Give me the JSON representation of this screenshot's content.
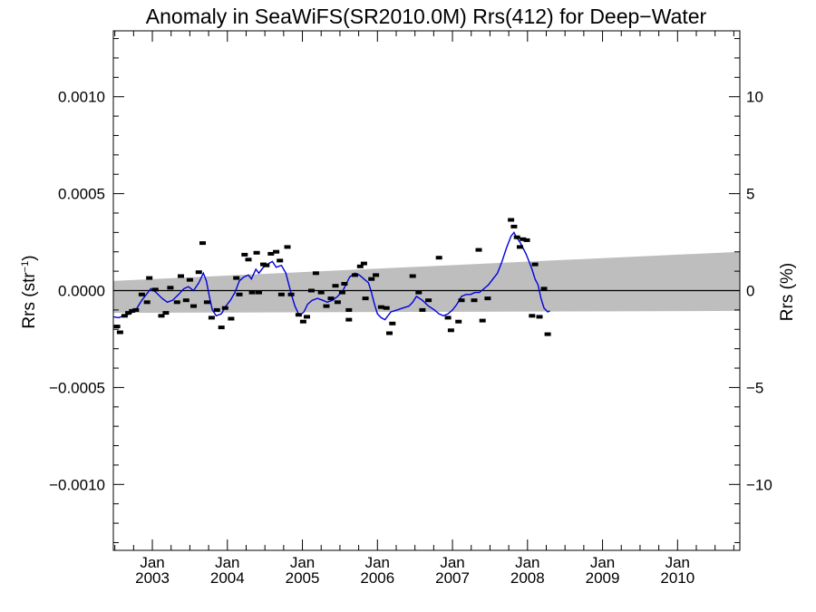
{
  "chart_data": {
    "type": "scatter",
    "title": "Anomaly in SeaWiFS(SR2010.0M) Rrs(412) for Deep−Water",
    "ylabel_left_main": "Rrs (str",
    "ylabel_left_sup": "−1",
    "ylabel_left_close": ")",
    "ylabel_right": "Rrs (%)",
    "x_tick_month": "Jan",
    "x_ticks": [
      {
        "year": 2003,
        "label": "2003"
      },
      {
        "year": 2004,
        "label": "2004"
      },
      {
        "year": 2005,
        "label": "2005"
      },
      {
        "year": 2006,
        "label": "2006"
      },
      {
        "year": 2007,
        "label": "2007"
      },
      {
        "year": 2008,
        "label": "2008"
      },
      {
        "year": 2009,
        "label": "2009"
      },
      {
        "year": 2010,
        "label": "2010"
      }
    ],
    "xlim": [
      2002.48,
      2010.83
    ],
    "ylim": [
      -0.00134,
      0.00134
    ],
    "y_ticks_left": [
      {
        "value": 0.001,
        "label": "0.0010"
      },
      {
        "value": 0.0005,
        "label": "0.0005"
      },
      {
        "value": 0.0,
        "label": "0.0000"
      },
      {
        "value": -0.0005,
        "label": "−0.0005"
      },
      {
        "value": -0.001,
        "label": "−0.0010"
      }
    ],
    "y_ticks_right": [
      {
        "value": 0.001,
        "label": "10"
      },
      {
        "value": 0.0005,
        "label": "5"
      },
      {
        "value": 0.0,
        "label": "0"
      },
      {
        "value": -0.0005,
        "label": "−5"
      },
      {
        "value": -0.001,
        "label": "−10"
      }
    ],
    "zero_line": true,
    "band": {
      "color": "#bebebe",
      "upper_start": 5e-05,
      "upper_end": 0.0002,
      "lower_start": -0.000115,
      "lower_end": -0.000105
    },
    "markers": [
      {
        "x": 2002.53,
        "y": -0.000185
      },
      {
        "x": 2002.57,
        "y": -0.000215
      },
      {
        "x": 2002.63,
        "y": -0.00013
      },
      {
        "x": 2002.68,
        "y": -0.000115
      },
      {
        "x": 2002.73,
        "y": -0.000105
      },
      {
        "x": 2002.78,
        "y": -0.0001
      },
      {
        "x": 2002.86,
        "y": -2e-05
      },
      {
        "x": 2002.93,
        "y": -6e-05
      },
      {
        "x": 2002.96,
        "y": 6.5e-05
      },
      {
        "x": 2003.04,
        "y": 5e-06
      },
      {
        "x": 2003.12,
        "y": -0.00013
      },
      {
        "x": 2003.18,
        "y": -0.000115
      },
      {
        "x": 2003.24,
        "y": 1.5e-05
      },
      {
        "x": 2003.33,
        "y": -6e-05
      },
      {
        "x": 2003.38,
        "y": 7.5e-05
      },
      {
        "x": 2003.45,
        "y": -5e-05
      },
      {
        "x": 2003.5,
        "y": 5.5e-05
      },
      {
        "x": 2003.55,
        "y": -8e-05
      },
      {
        "x": 2003.62,
        "y": 9.5e-05
      },
      {
        "x": 2003.67,
        "y": 0.000245
      },
      {
        "x": 2003.73,
        "y": -6e-05
      },
      {
        "x": 2003.79,
        "y": -0.00014
      },
      {
        "x": 2003.86,
        "y": -0.0001
      },
      {
        "x": 2003.92,
        "y": -0.00019
      },
      {
        "x": 2003.97,
        "y": -9e-05
      },
      {
        "x": 2004.05,
        "y": -0.000145
      },
      {
        "x": 2004.12,
        "y": 6.5e-05
      },
      {
        "x": 2004.16,
        "y": -2e-05
      },
      {
        "x": 2004.23,
        "y": 0.000185
      },
      {
        "x": 2004.28,
        "y": 0.00016
      },
      {
        "x": 2004.33,
        "y": -1e-05
      },
      {
        "x": 2004.39,
        "y": 0.000195
      },
      {
        "x": 2004.42,
        "y": -1e-05
      },
      {
        "x": 2004.48,
        "y": 0.000135
      },
      {
        "x": 2004.52,
        "y": 0.00013
      },
      {
        "x": 2004.58,
        "y": 0.00019
      },
      {
        "x": 2004.65,
        "y": 0.0002
      },
      {
        "x": 2004.7,
        "y": 0.000155
      },
      {
        "x": 2004.72,
        "y": -2e-05
      },
      {
        "x": 2004.8,
        "y": 0.000225
      },
      {
        "x": 2004.85,
        "y": -2e-05
      },
      {
        "x": 2004.95,
        "y": -0.000125
      },
      {
        "x": 2005.01,
        "y": -0.00016
      },
      {
        "x": 2005.06,
        "y": -0.000135
      },
      {
        "x": 2005.12,
        "y": 0.0
      },
      {
        "x": 2005.18,
        "y": 9e-05
      },
      {
        "x": 2005.25,
        "y": -1e-05
      },
      {
        "x": 2005.32,
        "y": -8e-05
      },
      {
        "x": 2005.38,
        "y": -4e-05
      },
      {
        "x": 2005.44,
        "y": 2.5e-05
      },
      {
        "x": 2005.47,
        "y": -6e-05
      },
      {
        "x": 2005.53,
        "y": -1e-05
      },
      {
        "x": 2005.56,
        "y": 3.5e-05
      },
      {
        "x": 2005.62,
        "y": -0.0001
      },
      {
        "x": 2005.62,
        "y": -0.00015
      },
      {
        "x": 2005.7,
        "y": 8e-05
      },
      {
        "x": 2005.77,
        "y": 0.000125
      },
      {
        "x": 2005.82,
        "y": 0.00014
      },
      {
        "x": 2005.84,
        "y": -4e-05
      },
      {
        "x": 2005.92,
        "y": 6e-05
      },
      {
        "x": 2005.98,
        "y": 8e-05
      },
      {
        "x": 2006.05,
        "y": -8.5e-05
      },
      {
        "x": 2006.12,
        "y": -9e-05
      },
      {
        "x": 2006.16,
        "y": -0.00022
      },
      {
        "x": 2006.2,
        "y": -0.00017
      },
      {
        "x": 2006.47,
        "y": 7.5e-05
      },
      {
        "x": 2006.55,
        "y": -1e-05
      },
      {
        "x": 2006.6,
        "y": -0.0001
      },
      {
        "x": 2006.68,
        "y": -5e-05
      },
      {
        "x": 2006.82,
        "y": 0.00017
      },
      {
        "x": 2006.94,
        "y": -0.00014
      },
      {
        "x": 2006.98,
        "y": -0.000205
      },
      {
        "x": 2007.08,
        "y": -0.00016
      },
      {
        "x": 2007.12,
        "y": -5e-05
      },
      {
        "x": 2007.29,
        "y": -5e-05
      },
      {
        "x": 2007.35,
        "y": 0.00021
      },
      {
        "x": 2007.4,
        "y": -0.000155
      },
      {
        "x": 2007.47,
        "y": -4e-05
      },
      {
        "x": 2007.78,
        "y": 0.000365
      },
      {
        "x": 2007.82,
        "y": 0.00033
      },
      {
        "x": 2007.86,
        "y": 0.000275
      },
      {
        "x": 2007.9,
        "y": 0.000225
      },
      {
        "x": 2007.94,
        "y": 0.000265
      },
      {
        "x": 2007.99,
        "y": 0.00026
      },
      {
        "x": 2008.06,
        "y": -0.00013
      },
      {
        "x": 2008.1,
        "y": 0.000135
      },
      {
        "x": 2008.16,
        "y": -0.000135
      },
      {
        "x": 2008.22,
        "y": 1e-05
      },
      {
        "x": 2008.27,
        "y": -0.000225
      }
    ],
    "line": {
      "color": "#0000dd",
      "points": [
        [
          2002.48,
          -0.000135
        ],
        [
          2002.55,
          -0.00014
        ],
        [
          2002.62,
          -0.00013
        ],
        [
          2002.7,
          -0.00012
        ],
        [
          2002.78,
          -0.0001
        ],
        [
          2002.86,
          -5e-05
        ],
        [
          2002.92,
          -2e-05
        ],
        [
          2002.98,
          1e-05
        ],
        [
          2003.05,
          -1e-05
        ],
        [
          2003.13,
          -4e-05
        ],
        [
          2003.2,
          -6e-05
        ],
        [
          2003.27,
          -5e-05
        ],
        [
          2003.35,
          -2e-05
        ],
        [
          2003.42,
          1e-05
        ],
        [
          2003.48,
          2e-05
        ],
        [
          2003.55,
          0.0
        ],
        [
          2003.62,
          4e-05
        ],
        [
          2003.68,
          9e-05
        ],
        [
          2003.72,
          5e-05
        ],
        [
          2003.76,
          -3e-05
        ],
        [
          2003.8,
          -0.0001
        ],
        [
          2003.85,
          -0.00013
        ],
        [
          2003.92,
          -0.00012
        ],
        [
          2003.98,
          -8e-05
        ],
        [
          2004.04,
          -5e-05
        ],
        [
          2004.1,
          -1e-05
        ],
        [
          2004.16,
          5e-05
        ],
        [
          2004.22,
          7e-05
        ],
        [
          2004.28,
          8e-05
        ],
        [
          2004.32,
          6e-05
        ],
        [
          2004.38,
          0.00011
        ],
        [
          2004.42,
          9e-05
        ],
        [
          2004.48,
          0.00012
        ],
        [
          2004.55,
          0.00014
        ],
        [
          2004.6,
          0.00015
        ],
        [
          2004.65,
          0.00012
        ],
        [
          2004.72,
          0.00013
        ],
        [
          2004.78,
          9e-05
        ],
        [
          2004.82,
          3e-05
        ],
        [
          2004.86,
          -3e-05
        ],
        [
          2004.9,
          -8e-05
        ],
        [
          2004.96,
          -0.00013
        ],
        [
          2005.02,
          -0.00011
        ],
        [
          2005.07,
          -7e-05
        ],
        [
          2005.13,
          -5e-05
        ],
        [
          2005.2,
          -4e-05
        ],
        [
          2005.27,
          -5e-05
        ],
        [
          2005.33,
          -6e-05
        ],
        [
          2005.4,
          -5e-05
        ],
        [
          2005.47,
          -3e-05
        ],
        [
          2005.54,
          0.0
        ],
        [
          2005.58,
          3e-05
        ],
        [
          2005.63,
          7e-05
        ],
        [
          2005.7,
          9e-05
        ],
        [
          2005.76,
          8e-05
        ],
        [
          2005.82,
          6e-05
        ],
        [
          2005.88,
          4e-05
        ],
        [
          2005.92,
          -1e-05
        ],
        [
          2005.96,
          -7e-05
        ],
        [
          2006.0,
          -0.00012
        ],
        [
          2006.05,
          -0.00014
        ],
        [
          2006.1,
          -0.00015
        ],
        [
          2006.18,
          -0.00011
        ],
        [
          2006.26,
          -0.0001
        ],
        [
          2006.34,
          -9e-05
        ],
        [
          2006.42,
          -8e-05
        ],
        [
          2006.47,
          -6e-05
        ],
        [
          2006.52,
          -3e-05
        ],
        [
          2006.6,
          -5e-05
        ],
        [
          2006.68,
          -8e-05
        ],
        [
          2006.76,
          -0.0001
        ],
        [
          2006.82,
          -0.00012
        ],
        [
          2006.88,
          -0.00013
        ],
        [
          2006.94,
          -0.00012
        ],
        [
          2007.0,
          -0.0001
        ],
        [
          2007.06,
          -7e-05
        ],
        [
          2007.12,
          -3e-05
        ],
        [
          2007.18,
          -2e-05
        ],
        [
          2007.24,
          -2e-05
        ],
        [
          2007.3,
          -1e-05
        ],
        [
          2007.36,
          -1e-05
        ],
        [
          2007.42,
          1e-05
        ],
        [
          2007.48,
          3e-05
        ],
        [
          2007.54,
          6e-05
        ],
        [
          2007.6,
          9e-05
        ],
        [
          2007.66,
          0.00015
        ],
        [
          2007.72,
          0.00022
        ],
        [
          2007.78,
          0.00028
        ],
        [
          2007.82,
          0.0003
        ],
        [
          2007.86,
          0.00027
        ],
        [
          2007.9,
          0.00025
        ],
        [
          2007.94,
          0.00022
        ],
        [
          2007.98,
          0.00019
        ],
        [
          2008.02,
          0.00015
        ],
        [
          2008.06,
          0.00011
        ],
        [
          2008.1,
          6e-05
        ],
        [
          2008.14,
          3e-05
        ],
        [
          2008.18,
          -4e-05
        ],
        [
          2008.22,
          -9e-05
        ],
        [
          2008.27,
          -0.00011
        ],
        [
          2008.3,
          -0.000105
        ]
      ]
    }
  }
}
